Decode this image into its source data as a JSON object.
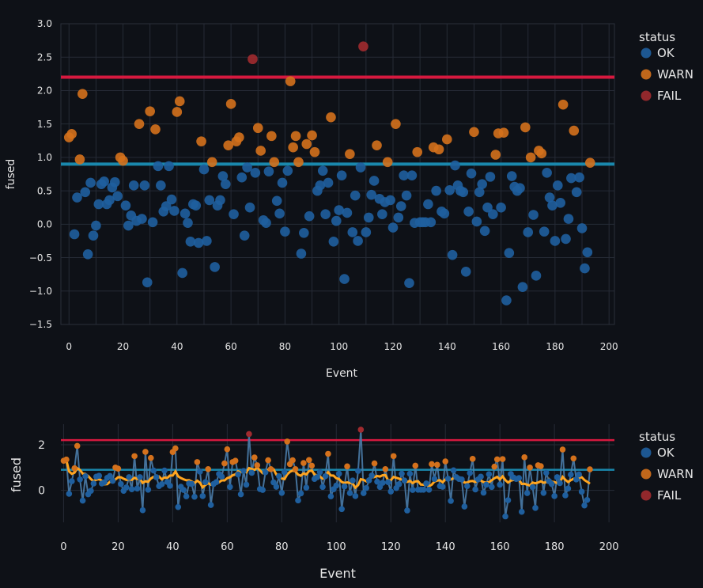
{
  "colors": {
    "background": "#0e1117",
    "grid": "#262b36",
    "axis_text": "#e6e6e6",
    "ok": "#1f5f9e",
    "warn": "#d4711c",
    "fail": "#a12b2f",
    "upper_line": "#d7193f",
    "mid_line": "#1a88ad",
    "trend_line": "#ffa51f",
    "connector": "#4a7ca8"
  },
  "legend": {
    "title": "status",
    "items": [
      {
        "label": "OK",
        "status": "OK"
      },
      {
        "label": "WARN",
        "status": "WARN"
      },
      {
        "label": "FAIL",
        "status": "FAIL"
      }
    ]
  },
  "chart_data": [
    {
      "id": "top",
      "type": "scatter",
      "xlabel": "Event",
      "ylabel": "fused",
      "xlim": [
        -3,
        202
      ],
      "ylim": [
        -1.5,
        3.0
      ],
      "xticks": [
        0,
        20,
        40,
        60,
        80,
        100,
        120,
        140,
        160,
        180,
        200
      ],
      "yticks": [
        3.0,
        2.5,
        2.0,
        1.5,
        1.0,
        0.5,
        0.0,
        -0.5,
        -1.0,
        -1.5
      ],
      "ytick_labels": [
        "3.0",
        "2.5",
        "2.0",
        "1.5",
        "1.0",
        "0.5",
        "0.0",
        "−0.5",
        "−1.0",
        "−1.5"
      ],
      "xgrid_values": [
        0,
        10,
        20,
        30,
        40,
        50,
        60,
        70,
        80,
        90,
        100,
        110,
        120,
        130,
        140,
        150,
        160,
        170,
        180,
        190,
        200
      ],
      "hlines": [
        {
          "y": 2.2,
          "role": "upper"
        },
        {
          "y": 0.9,
          "role": "mid"
        }
      ],
      "grid": true,
      "legend_position": "right"
    },
    {
      "id": "bottom",
      "type": "line",
      "xlabel": "Event",
      "ylabel": "fused",
      "xlim": [
        -1,
        202
      ],
      "ylim": [
        -1.4,
        2.9
      ],
      "xticks": [
        0,
        20,
        40,
        60,
        80,
        100,
        120,
        140,
        160,
        180,
        200
      ],
      "yticks": [
        2,
        0
      ],
      "ytick_labels": [
        "2",
        "0"
      ],
      "xgrid_values": [
        0,
        20,
        40,
        60,
        80,
        100,
        120,
        140,
        160,
        180,
        200
      ],
      "hlines": [
        {
          "y": 2.2,
          "role": "upper"
        },
        {
          "y": 0.9,
          "role": "mid"
        }
      ],
      "trend": "rolling mean (window 10)",
      "grid": true,
      "legend_position": "right"
    }
  ],
  "series_data": {
    "x_start": 0,
    "values": [
      1.3,
      1.35,
      -0.15,
      0.4,
      0.97,
      1.95,
      0.48,
      -0.45,
      0.62,
      -0.17,
      -0.02,
      0.3,
      0.6,
      0.64,
      0.3,
      0.36,
      0.55,
      0.63,
      0.42,
      1.0,
      0.95,
      0.28,
      -0.02,
      0.13,
      0.58,
      0.05,
      1.5,
      0.08,
      0.58,
      -0.87,
      1.69,
      0.03,
      1.42,
      0.87,
      0.58,
      0.19,
      0.27,
      0.87,
      0.37,
      0.2,
      1.68,
      1.84,
      -0.73,
      0.16,
      0.02,
      -0.26,
      0.3,
      0.28,
      -0.28,
      1.24,
      0.82,
      -0.25,
      0.36,
      0.93,
      -0.64,
      0.28,
      0.36,
      0.72,
      0.6,
      1.18,
      1.8,
      0.15,
      1.24,
      1.3,
      0.7,
      -0.17,
      0.85,
      0.25,
      2.47,
      0.77,
      1.44,
      1.1,
      0.06,
      0.02,
      0.79,
      1.32,
      0.93,
      0.35,
      0.16,
      0.62,
      -0.11,
      0.8,
      2.14,
      1.15,
      1.32,
      0.93,
      -0.44,
      -0.13,
      1.2,
      0.12,
      1.33,
      1.08,
      0.5,
      0.58,
      0.8,
      0.15,
      0.62,
      1.6,
      -0.26,
      0.05,
      0.21,
      0.73,
      -0.82,
      0.17,
      1.05,
      -0.12,
      0.43,
      -0.25,
      0.85,
      2.66,
      -0.12,
      0.1,
      0.44,
      0.65,
      1.18,
      0.38,
      0.15,
      0.33,
      0.93,
      0.36,
      -0.05,
      1.5,
      0.1,
      0.27,
      0.73,
      0.43,
      -0.88,
      0.73,
      0.02,
      1.08,
      0.03,
      0.03,
      0.03,
      0.3,
      0.03,
      1.15,
      0.5,
      1.12,
      0.19,
      0.16,
      1.27,
      0.51,
      -0.46,
      0.88,
      0.58,
      0.5,
      0.48,
      -0.71,
      0.19,
      0.76,
      1.38,
      0.04,
      0.48,
      0.6,
      -0.1,
      0.25,
      0.71,
      0.15,
      1.04,
      1.36,
      0.25,
      1.37,
      -1.14,
      -0.43,
      0.72,
      0.56,
      0.5,
      0.54,
      -0.94,
      1.45,
      -0.12,
      1.0,
      0.14,
      -0.77,
      1.1,
      1.06,
      -0.11,
      0.77,
      0.4,
      0.28,
      -0.25,
      0.58,
      0.32,
      1.79,
      -0.22,
      0.08,
      0.69,
      1.4,
      0.48,
      0.7,
      -0.06,
      -0.66,
      -0.42,
      0.92
    ],
    "status_rule": "FAIL above 2.2, WARN from 0.9 to 2.2, OK below 0.9"
  }
}
